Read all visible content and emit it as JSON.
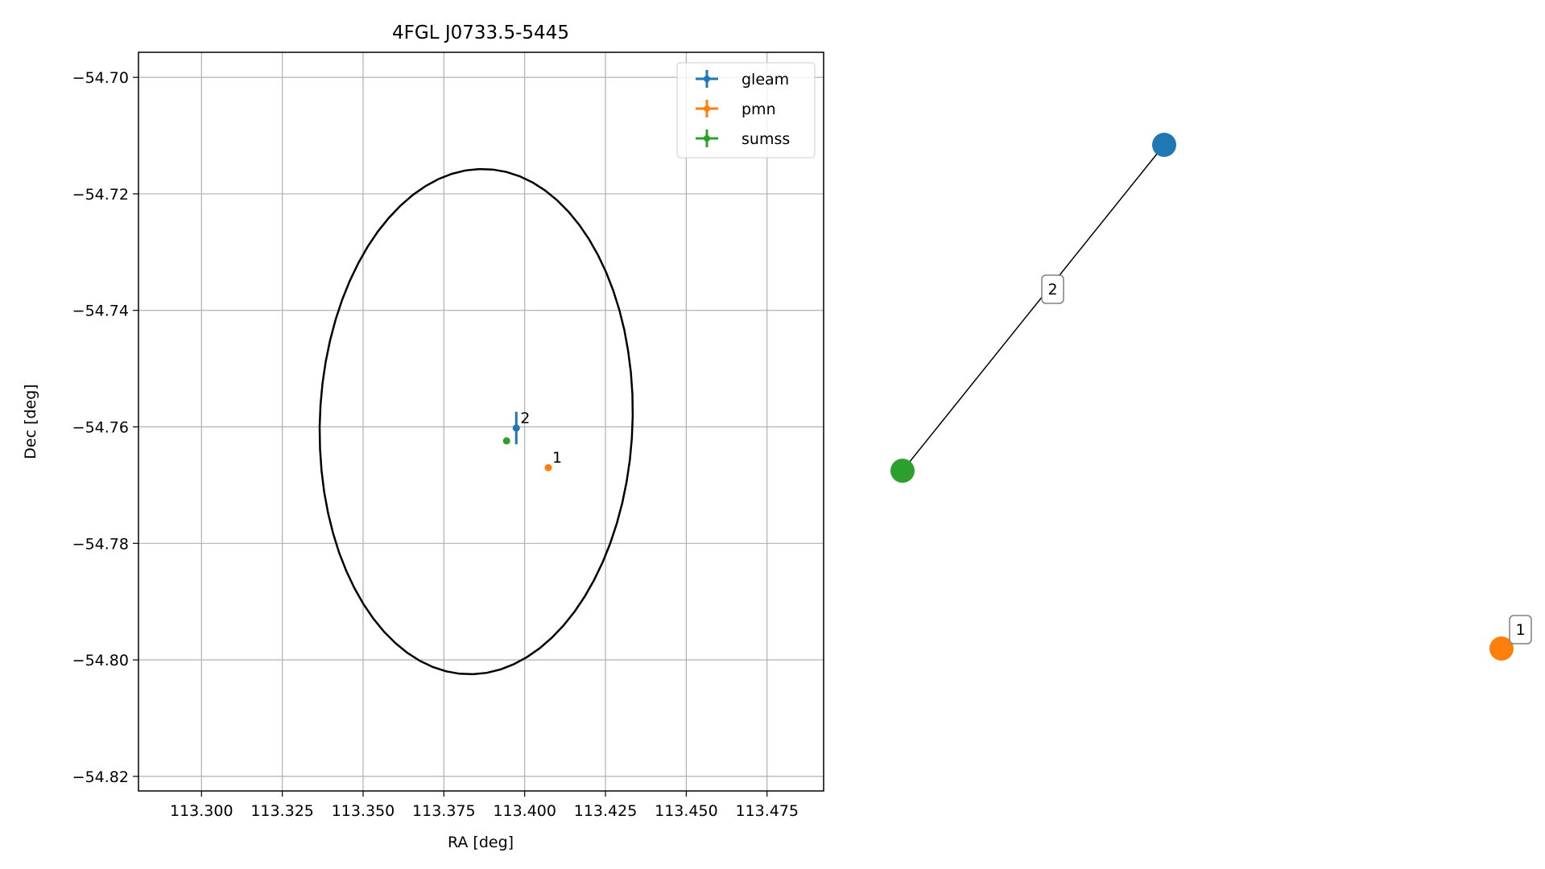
{
  "chart_data": [
    {
      "type": "scatter",
      "title": "4FGL J0733.5-5445",
      "xlabel": "RA [deg]",
      "ylabel": "Dec [deg]",
      "xlim": [
        113.2805,
        113.4925
      ],
      "ylim": [
        -54.8225,
        -54.6957
      ],
      "x_ticks": [
        113.3,
        113.325,
        113.35,
        113.375,
        113.4,
        113.425,
        113.45,
        113.475
      ],
      "x_tick_labels": [
        "113.300",
        "113.325",
        "113.350",
        "113.375",
        "113.400",
        "113.425",
        "113.450",
        "113.475"
      ],
      "y_ticks": [
        -54.7,
        -54.72,
        -54.74,
        -54.76,
        -54.78,
        -54.8,
        -54.82
      ],
      "y_tick_labels": [
        "−54.70",
        "−54.72",
        "−54.74",
        "−54.76",
        "−54.78",
        "−54.80",
        "−54.82"
      ],
      "grid": true,
      "legend_position": "top-right",
      "colors": {
        "gleam": "#1f77b4",
        "pmn": "#ff7f0e",
        "sumss": "#2ca02c",
        "ellipse": "#000000",
        "grid": "#b0b0b0"
      },
      "series": [
        {
          "name": "gleam",
          "points": [
            {
              "x": 113.3974,
              "y": -54.7602,
              "yerr": 0.0028,
              "xerr": 0.0003,
              "label": "2"
            }
          ]
        },
        {
          "name": "pmn",
          "points": [
            {
              "x": 113.4073,
              "y": -54.767,
              "yerr": 0,
              "xerr": 0,
              "label": "1"
            }
          ]
        },
        {
          "name": "sumss",
          "points": [
            {
              "x": 113.3944,
              "y": -54.7624,
              "yerr": 0,
              "xerr": 0,
              "label": ""
            }
          ]
        }
      ],
      "ellipse": {
        "center": [
          113.385,
          -54.7591
        ],
        "semi_axes": [
          0.0486,
          0.0432
        ],
        "angle_deg": 10
      }
    },
    {
      "type": "network",
      "nodes": [
        {
          "name": "gleam",
          "color": "#1f77b4"
        },
        {
          "name": "sumss",
          "color": "#2ca02c"
        },
        {
          "name": "pmn",
          "color": "#ff7f0e",
          "label": "1"
        }
      ],
      "edges": [
        {
          "from": "gleam",
          "to": "sumss",
          "label": "2"
        }
      ]
    }
  ]
}
